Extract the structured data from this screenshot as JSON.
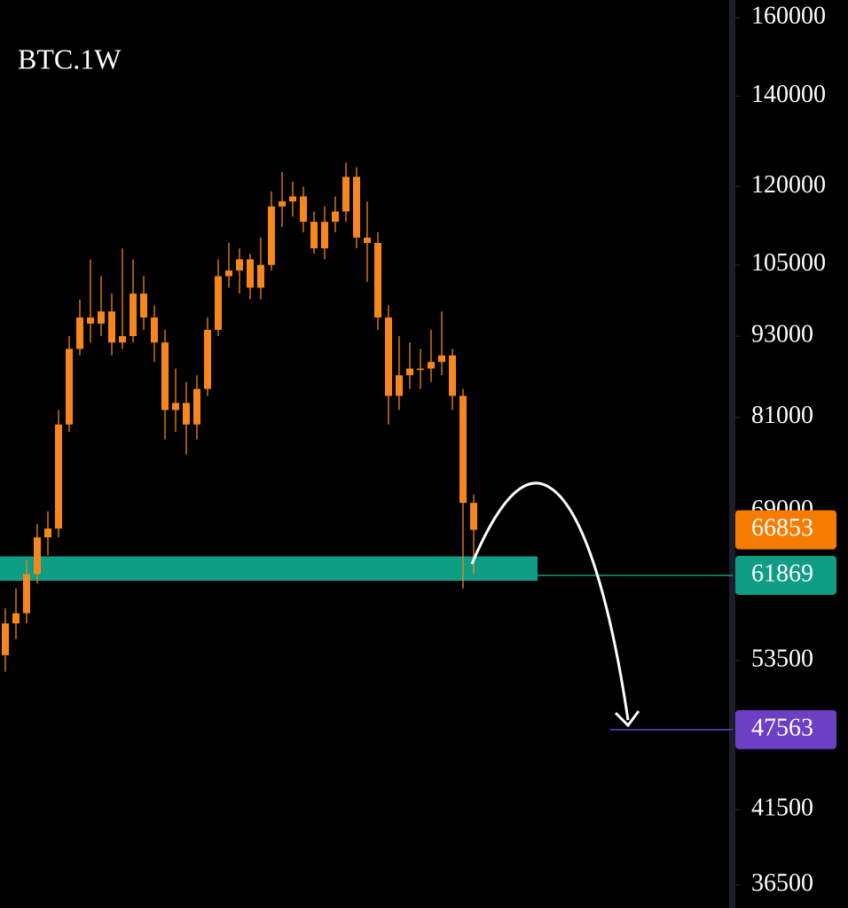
{
  "chart_data": {
    "type": "candlestick",
    "title": "BTC.1W",
    "log_scale": true,
    "color": "#f7861c",
    "ylim": [
      35100,
      164900
    ],
    "yticks": [
      160000,
      140000,
      120000,
      105000,
      93000,
      81000,
      69000,
      53500,
      41500,
      36500
    ],
    "open": [
      54000,
      57000,
      58000,
      62000,
      66000,
      67000,
      80000,
      91000,
      96000,
      95000,
      97000,
      92000,
      93000,
      100000,
      96000,
      92000,
      82000,
      83000,
      80000,
      85000,
      94000,
      103000,
      104000,
      106000,
      101000,
      105000,
      116000,
      117000,
      118000,
      113000,
      108000,
      113000,
      115000,
      122000,
      110000,
      109000,
      96000,
      84000,
      87000,
      88000,
      88000,
      89000,
      90000,
      84000,
      70000
    ],
    "high": [
      58500,
      60500,
      63500,
      67500,
      69000,
      82000,
      93000,
      99000,
      106000,
      103000,
      100000,
      108000,
      106000,
      103000,
      98000,
      94000,
      88000,
      86000,
      87000,
      96000,
      106000,
      109000,
      108000,
      107000,
      110000,
      119000,
      123000,
      121000,
      120000,
      115000,
      116000,
      118000,
      125000,
      124000,
      117000,
      111000,
      98000,
      93000,
      92000,
      91000,
      94000,
      97000,
      91000,
      85000,
      71000
    ],
    "low": [
      52500,
      55500,
      57000,
      61000,
      64000,
      66000,
      79000,
      90000,
      92000,
      93000,
      90000,
      91000,
      92000,
      94000,
      89000,
      78000,
      79000,
      76000,
      78000,
      84000,
      93000,
      101000,
      100000,
      99000,
      99000,
      104000,
      112000,
      114000,
      111000,
      107000,
      106000,
      111000,
      113000,
      108000,
      102000,
      94000,
      80000,
      82000,
      85000,
      85000,
      86000,
      87000,
      82000,
      60500,
      62000
    ],
    "close": [
      57000,
      58000,
      62000,
      66000,
      67000,
      80000,
      91000,
      96000,
      95000,
      97000,
      92000,
      93000,
      100000,
      96000,
      92000,
      82000,
      83000,
      80000,
      85000,
      94000,
      103000,
      104000,
      106000,
      101000,
      105000,
      116000,
      117000,
      118000,
      113000,
      108000,
      113000,
      115000,
      122000,
      110000,
      109000,
      96000,
      84000,
      87000,
      88000,
      88000,
      89000,
      90000,
      84000,
      70000,
      66853
    ],
    "zone": {
      "range": [
        61300,
        63900
      ],
      "color": "#0f9d85"
    },
    "price_labels": [
      {
        "value": 66853,
        "color": "#f57c00"
      },
      {
        "value": 61869,
        "color": "#0f9d85"
      },
      {
        "value": 47563,
        "color": "#6c3fc4"
      }
    ]
  }
}
